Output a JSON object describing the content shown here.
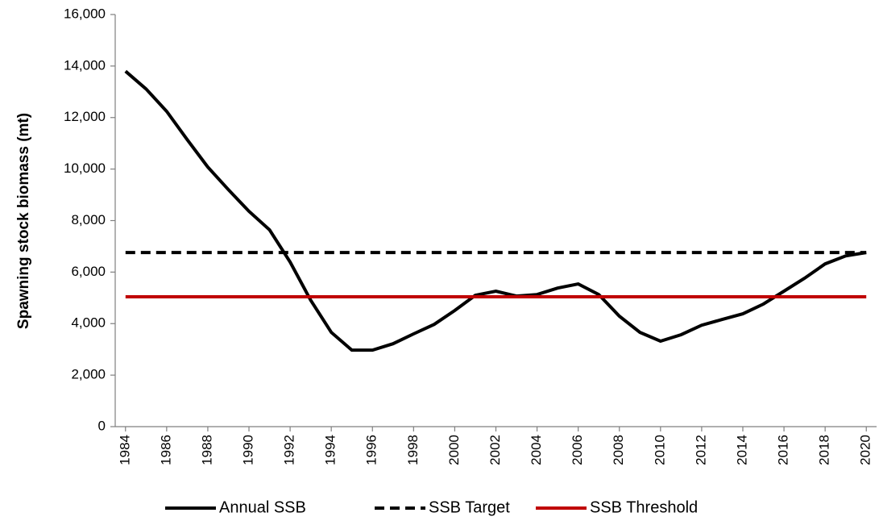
{
  "chart_data": {
    "type": "line",
    "ylabel": "Spawning stock biomass (mt)",
    "x": [
      1984,
      1985,
      1986,
      1987,
      1988,
      1989,
      1990,
      1991,
      1992,
      1993,
      1994,
      1995,
      1996,
      1997,
      1998,
      1999,
      2000,
      2001,
      2002,
      2003,
      2004,
      2005,
      2006,
      2007,
      2008,
      2009,
      2010,
      2011,
      2012,
      2013,
      2014,
      2015,
      2016,
      2017,
      2018,
      2019,
      2020
    ],
    "series": [
      {
        "name": "Annual SSB",
        "color": "#000000",
        "style": "solid",
        "values": [
          13800,
          13110,
          12240,
          11140,
          10080,
          9200,
          8360,
          7640,
          6390,
          4910,
          3660,
          2970,
          2970,
          3220,
          3600,
          3970,
          4510,
          5100,
          5260,
          5070,
          5130,
          5380,
          5540,
          5130,
          4290,
          3660,
          3320,
          3570,
          3940,
          4160,
          4380,
          4760,
          5260,
          5760,
          6320,
          6630,
          6760
        ]
      },
      {
        "name": "SSB Target",
        "color": "#000000",
        "style": "dashed",
        "values": [
          6760,
          6760,
          6760,
          6760,
          6760,
          6760,
          6760,
          6760,
          6760,
          6760,
          6760,
          6760,
          6760,
          6760,
          6760,
          6760,
          6760,
          6760,
          6760,
          6760,
          6760,
          6760,
          6760,
          6760,
          6760,
          6760,
          6760,
          6760,
          6760,
          6760,
          6760,
          6760,
          6760,
          6760,
          6760,
          6760,
          6760
        ]
      },
      {
        "name": "SSB Threshold",
        "color": "#c00000",
        "style": "solid",
        "values": [
          5040,
          5040,
          5040,
          5040,
          5040,
          5040,
          5040,
          5040,
          5040,
          5040,
          5040,
          5040,
          5040,
          5040,
          5040,
          5040,
          5040,
          5040,
          5040,
          5040,
          5040,
          5040,
          5040,
          5040,
          5040,
          5040,
          5040,
          5040,
          5040,
          5040,
          5040,
          5040,
          5040,
          5040,
          5040,
          5040,
          5040
        ]
      }
    ],
    "xlim": [
      1983.5,
      2020.5
    ],
    "xticks": [
      1984,
      1986,
      1988,
      1990,
      1992,
      1994,
      1996,
      1998,
      2000,
      2002,
      2004,
      2006,
      2008,
      2010,
      2012,
      2014,
      2016,
      2018,
      2020
    ],
    "ylim": [
      0,
      16000
    ],
    "yticks": [
      0,
      {
        "value": 2000,
        "label": "2,000"
      },
      {
        "value": 4000,
        "label": "4,000"
      },
      {
        "value": 6000,
        "label": "6,000"
      },
      {
        "value": 8000,
        "label": "8,000"
      },
      {
        "value": 10000,
        "label": "10,000"
      },
      {
        "value": 12000,
        "label": "12,000"
      },
      {
        "value": 14000,
        "label": "14,000"
      },
      {
        "value": 16000,
        "label": "16,000"
      }
    ],
    "grid": false,
    "legend": "bottom"
  }
}
